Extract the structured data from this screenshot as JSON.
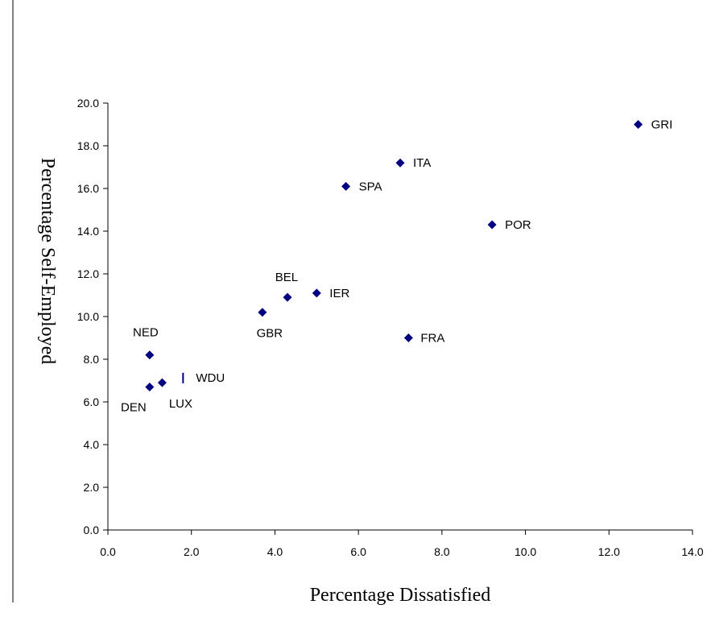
{
  "chart_data": {
    "type": "scatter",
    "xlabel": "Percentage Dissatisfied",
    "ylabel": "Percentage Self-Employed",
    "xlim": [
      0,
      14
    ],
    "ylim": [
      0,
      20
    ],
    "xticks": [
      "0.0",
      "2.0",
      "4.0",
      "6.0",
      "8.0",
      "10.0",
      "12.0",
      "14.0"
    ],
    "yticks": [
      "0.0",
      "2.0",
      "4.0",
      "6.0",
      "8.0",
      "10.0",
      "12.0",
      "14.0",
      "16.0",
      "18.0",
      "20.0"
    ],
    "grid": false,
    "marker_color": "#000080",
    "points": [
      {
        "label": "GRI",
        "x": 12.7,
        "y": 19.0
      },
      {
        "label": "ITA",
        "x": 7.0,
        "y": 17.2
      },
      {
        "label": "SPA",
        "x": 5.7,
        "y": 16.1
      },
      {
        "label": "POR",
        "x": 9.2,
        "y": 14.3
      },
      {
        "label": "IER",
        "x": 5.0,
        "y": 11.1
      },
      {
        "label": "BEL",
        "x": 4.3,
        "y": 10.9
      },
      {
        "label": "GBR",
        "x": 3.7,
        "y": 10.2
      },
      {
        "label": "FRA",
        "x": 7.2,
        "y": 9.0
      },
      {
        "label": "NED",
        "x": 1.0,
        "y": 8.2
      },
      {
        "label": "WDU",
        "x": 1.8,
        "y": 7.1
      },
      {
        "label": "LUX",
        "x": 1.3,
        "y": 6.9
      },
      {
        "label": "DEN",
        "x": 1.0,
        "y": 6.7
      }
    ]
  }
}
